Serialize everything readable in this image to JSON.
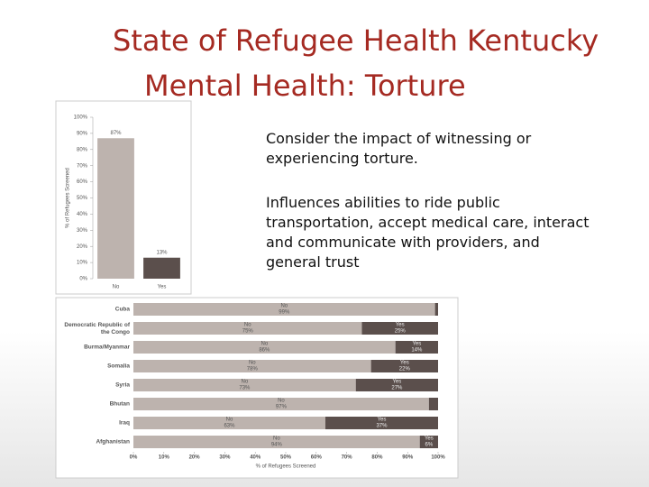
{
  "slide": {
    "title": "State of Refugee Health Kentucky",
    "subtitle": "Mental Health:  Torture",
    "body": [
      "Consider the impact of witnessing or experiencing torture.",
      "Influences abilities to ride public transportation, accept medical care, interact and communicate with providers, and general trust"
    ]
  },
  "chart_data": [
    {
      "type": "bar",
      "y_label": "% of Refugees Screened",
      "categories": [
        "No",
        "Yes"
      ],
      "values": [
        87,
        13
      ],
      "value_labels": [
        "87%",
        "13%"
      ],
      "color": "#bdb3ae",
      "colors": [
        "#bdb3ae",
        "#5b4f4c"
      ],
      "ylim": [
        0,
        100
      ],
      "yticks": [
        {
          "value": 0,
          "label": "0%"
        },
        {
          "value": 10,
          "label": "10%"
        },
        {
          "value": 20,
          "label": "20%"
        },
        {
          "value": 30,
          "label": "30%"
        },
        {
          "value": 40,
          "label": "40%"
        },
        {
          "value": 50,
          "label": "50%"
        },
        {
          "value": 60,
          "label": "60%"
        },
        {
          "value": 70,
          "label": "70%"
        },
        {
          "value": 80,
          "label": "80%"
        },
        {
          "value": 90,
          "label": "90%"
        },
        {
          "value": 100,
          "label": "100%"
        }
      ]
    },
    {
      "type": "stacked-barh",
      "x_label": "% of Refugees Screened",
      "categories": [
        "Cuba",
        "Democratic Republic of the Congo",
        "Burma/Myanmar",
        "Somalia",
        "Syria",
        "Bhutan",
        "Iraq",
        "Afghanistan"
      ],
      "series": [
        {
          "name": "No",
          "color": "#bdb3ae",
          "values": [
            99,
            75,
            86,
            78,
            73,
            97,
            63,
            94
          ],
          "value_labels": [
            "99%",
            "75%",
            "86%",
            "78%",
            "73%",
            "97%",
            "63%",
            "94%"
          ]
        },
        {
          "name": "Yes",
          "color": "#5b4f4c",
          "values": [
            1,
            25,
            14,
            22,
            27,
            3,
            37,
            6
          ],
          "value_labels": [
            null,
            "25%",
            "14%",
            "22%",
            "27%",
            null,
            "37%",
            "6%"
          ]
        }
      ],
      "xlim": [
        0,
        100
      ],
      "xticks": [
        {
          "value": 0,
          "label": "0%"
        },
        {
          "value": 10,
          "label": "10%"
        },
        {
          "value": 20,
          "label": "20%"
        },
        {
          "value": 30,
          "label": "30%"
        },
        {
          "value": 40,
          "label": "40%"
        },
        {
          "value": 50,
          "label": "50%"
        },
        {
          "value": 60,
          "label": "60%"
        },
        {
          "value": 70,
          "label": "70%"
        },
        {
          "value": 80,
          "label": "80%"
        },
        {
          "value": 90,
          "label": "90%"
        },
        {
          "value": 100,
          "label": "100%"
        }
      ]
    }
  ]
}
